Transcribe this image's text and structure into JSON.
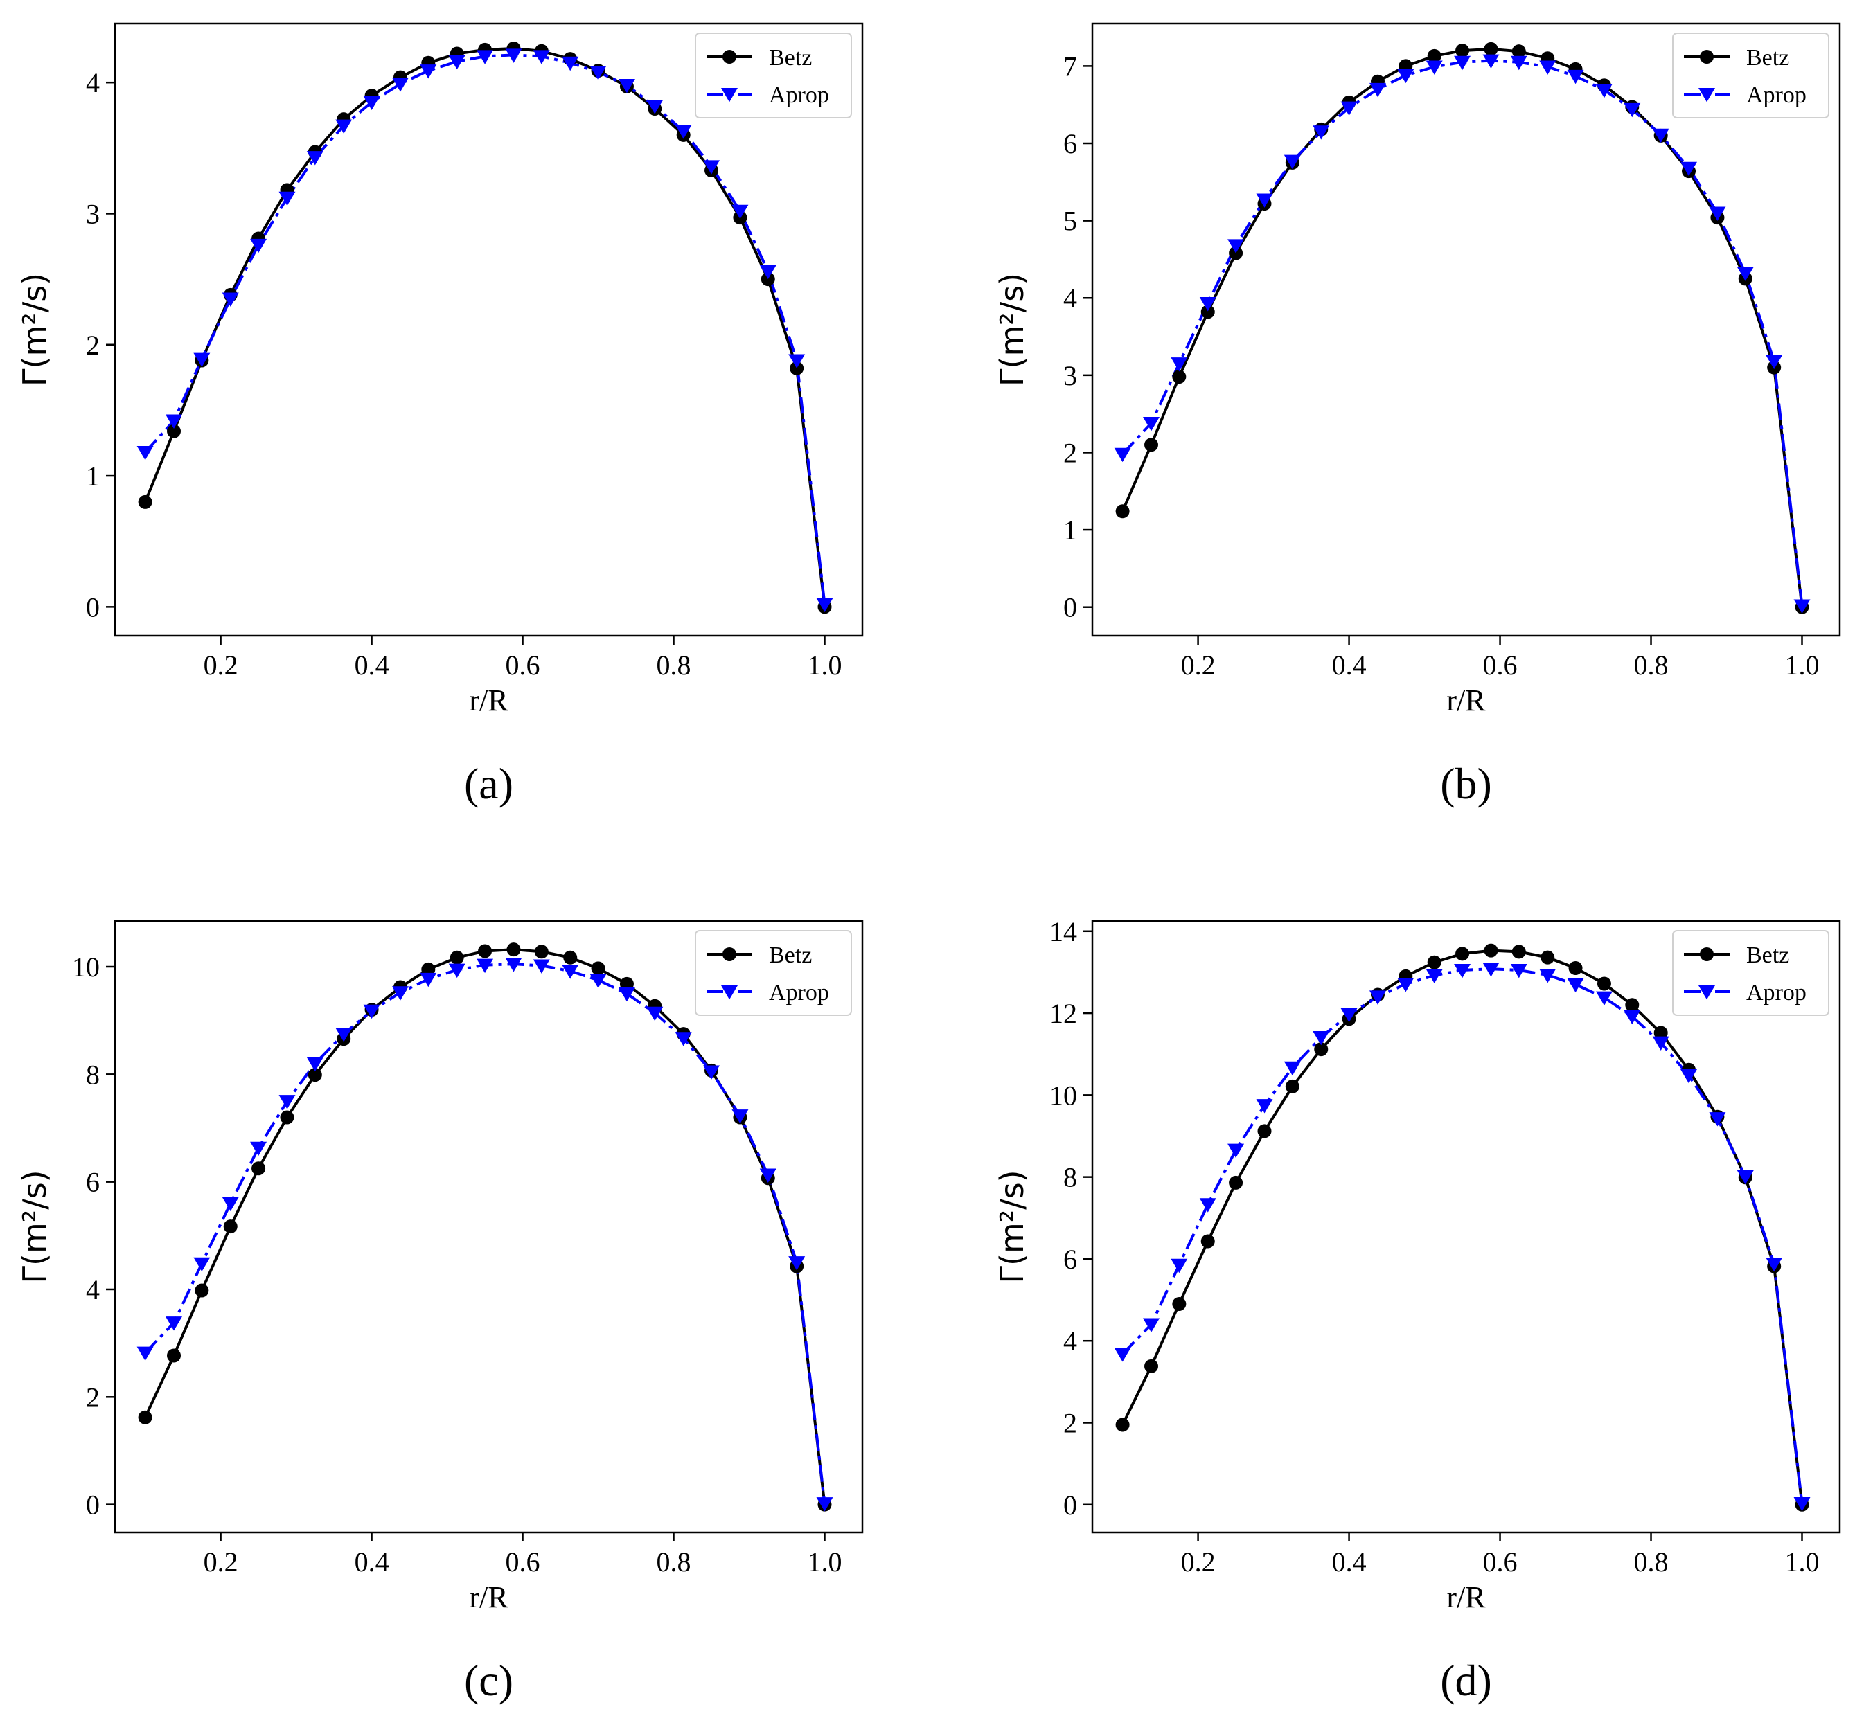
{
  "chart_data": [
    {
      "type": "line",
      "caption": "(a)",
      "xlabel": "r/R",
      "ylabel": "Γ(m²/s)",
      "xlim": [
        0.06,
        1.05
      ],
      "ylim": [
        -0.22,
        4.45
      ],
      "xticks": [
        0.2,
        0.4,
        0.6,
        0.8,
        1.0
      ],
      "xtick_labels": [
        "0.2",
        "0.4",
        "0.6",
        "0.8",
        "1.0"
      ],
      "yticks": [
        0,
        1,
        2,
        3,
        4
      ],
      "ytick_labels": [
        "0",
        "1",
        "2",
        "3",
        "4"
      ],
      "legend_position": "top-right",
      "series": [
        {
          "name": "Betz",
          "color": "#000000",
          "marker": "circle",
          "line_style": "solid",
          "x": [
            0.1,
            0.138,
            0.175,
            0.213,
            0.25,
            0.288,
            0.325,
            0.363,
            0.4,
            0.438,
            0.475,
            0.513,
            0.55,
            0.588,
            0.625,
            0.663,
            0.7,
            0.738,
            0.775,
            0.813,
            0.85,
            0.888,
            0.925,
            0.963,
            1.0
          ],
          "y": [
            0.8,
            1.34,
            1.88,
            2.38,
            2.81,
            3.18,
            3.47,
            3.72,
            3.9,
            4.04,
            4.15,
            4.22,
            4.25,
            4.26,
            4.24,
            4.18,
            4.09,
            3.97,
            3.8,
            3.6,
            3.33,
            2.97,
            2.5,
            1.82,
            0.0
          ]
        },
        {
          "name": "Aprop",
          "color": "#0000ff",
          "marker": "triangle-down",
          "line_style": "dashdot",
          "x": [
            0.1,
            0.138,
            0.175,
            0.213,
            0.25,
            0.288,
            0.325,
            0.363,
            0.4,
            0.438,
            0.475,
            0.513,
            0.55,
            0.588,
            0.625,
            0.663,
            0.7,
            0.738,
            0.775,
            0.813,
            0.85,
            0.888,
            0.925,
            0.963,
            1.0
          ],
          "y": [
            1.18,
            1.42,
            1.89,
            2.35,
            2.76,
            3.12,
            3.43,
            3.67,
            3.85,
            3.99,
            4.09,
            4.16,
            4.2,
            4.21,
            4.2,
            4.15,
            4.08,
            3.98,
            3.82,
            3.63,
            3.36,
            3.02,
            2.56,
            1.88,
            0.02
          ]
        }
      ]
    },
    {
      "type": "line",
      "caption": "(b)",
      "xlabel": "r/R",
      "ylabel": "Γ(m²/s)",
      "xlim": [
        0.06,
        1.05
      ],
      "ylim": [
        -0.37,
        7.55
      ],
      "xticks": [
        0.2,
        0.4,
        0.6,
        0.8,
        1.0
      ],
      "xtick_labels": [
        "0.2",
        "0.4",
        "0.6",
        "0.8",
        "1.0"
      ],
      "yticks": [
        0,
        1,
        2,
        3,
        4,
        5,
        6,
        7
      ],
      "ytick_labels": [
        "0",
        "1",
        "2",
        "3",
        "4",
        "5",
        "6",
        "7"
      ],
      "legend_position": "top-right",
      "series": [
        {
          "name": "Betz",
          "color": "#000000",
          "marker": "circle",
          "line_style": "solid",
          "x": [
            0.1,
            0.138,
            0.175,
            0.213,
            0.25,
            0.288,
            0.325,
            0.363,
            0.4,
            0.438,
            0.475,
            0.513,
            0.55,
            0.588,
            0.625,
            0.663,
            0.7,
            0.738,
            0.775,
            0.813,
            0.85,
            0.888,
            0.925,
            0.963,
            1.0
          ],
          "y": [
            1.24,
            2.1,
            2.98,
            3.82,
            4.58,
            5.22,
            5.75,
            6.18,
            6.53,
            6.8,
            7.0,
            7.13,
            7.2,
            7.22,
            7.19,
            7.1,
            6.96,
            6.75,
            6.47,
            6.1,
            5.64,
            5.04,
            4.25,
            3.1,
            0.0
          ]
        },
        {
          "name": "Aprop",
          "color": "#0000ff",
          "marker": "triangle-down",
          "line_style": "dashdot",
          "x": [
            0.1,
            0.138,
            0.175,
            0.213,
            0.25,
            0.288,
            0.325,
            0.363,
            0.4,
            0.438,
            0.475,
            0.513,
            0.55,
            0.588,
            0.625,
            0.663,
            0.7,
            0.738,
            0.775,
            0.813,
            0.85,
            0.888,
            0.925,
            0.963,
            1.0
          ],
          "y": [
            1.98,
            2.38,
            3.15,
            3.93,
            4.68,
            5.27,
            5.77,
            6.15,
            6.46,
            6.7,
            6.88,
            6.99,
            7.05,
            7.07,
            7.05,
            6.99,
            6.87,
            6.69,
            6.44,
            6.11,
            5.68,
            5.1,
            4.32,
            3.18,
            0.02
          ]
        }
      ]
    },
    {
      "type": "line",
      "caption": "(c)",
      "xlabel": "r/R",
      "ylabel": "Γ(m²/s)",
      "xlim": [
        0.06,
        1.05
      ],
      "ylim": [
        -0.52,
        10.85
      ],
      "xticks": [
        0.2,
        0.4,
        0.6,
        0.8,
        1.0
      ],
      "xtick_labels": [
        "0.2",
        "0.4",
        "0.6",
        "0.8",
        "1.0"
      ],
      "yticks": [
        0,
        2,
        4,
        6,
        8,
        10
      ],
      "ytick_labels": [
        "0",
        "2",
        "4",
        "6",
        "8",
        "10"
      ],
      "legend_position": "top-right",
      "series": [
        {
          "name": "Betz",
          "color": "#000000",
          "marker": "circle",
          "line_style": "solid",
          "x": [
            0.1,
            0.138,
            0.175,
            0.213,
            0.25,
            0.288,
            0.325,
            0.363,
            0.4,
            0.438,
            0.475,
            0.513,
            0.55,
            0.588,
            0.625,
            0.663,
            0.7,
            0.738,
            0.775,
            0.813,
            0.85,
            0.888,
            0.925,
            0.963,
            1.0
          ],
          "y": [
            1.62,
            2.77,
            3.98,
            5.17,
            6.25,
            7.2,
            7.99,
            8.66,
            9.2,
            9.62,
            9.95,
            10.17,
            10.29,
            10.32,
            10.28,
            10.17,
            9.97,
            9.68,
            9.27,
            8.75,
            8.07,
            7.2,
            6.07,
            4.43,
            0.0
          ]
        },
        {
          "name": "Aprop",
          "color": "#0000ff",
          "marker": "triangle-down",
          "line_style": "dashdot",
          "x": [
            0.1,
            0.138,
            0.175,
            0.213,
            0.25,
            0.288,
            0.325,
            0.363,
            0.4,
            0.438,
            0.475,
            0.513,
            0.55,
            0.588,
            0.625,
            0.663,
            0.7,
            0.738,
            0.775,
            0.813,
            0.85,
            0.888,
            0.925,
            0.963,
            1.0
          ],
          "y": [
            2.82,
            3.38,
            4.48,
            5.6,
            6.63,
            7.5,
            8.2,
            8.75,
            9.18,
            9.52,
            9.77,
            9.94,
            10.03,
            10.05,
            10.02,
            9.92,
            9.75,
            9.5,
            9.14,
            8.67,
            8.05,
            7.23,
            6.13,
            4.5,
            0.02
          ]
        }
      ]
    },
    {
      "type": "line",
      "caption": "(d)",
      "xlabel": "r/R",
      "ylabel": "Γ(m²/s)",
      "xlim": [
        0.06,
        1.05
      ],
      "ylim": [
        -0.68,
        14.25
      ],
      "xticks": [
        0.2,
        0.4,
        0.6,
        0.8,
        1.0
      ],
      "xtick_labels": [
        "0.2",
        "0.4",
        "0.6",
        "0.8",
        "1.0"
      ],
      "yticks": [
        0,
        2,
        4,
        6,
        8,
        10,
        12,
        14
      ],
      "ytick_labels": [
        "0",
        "2",
        "4",
        "6",
        "8",
        "10",
        "12",
        "14"
      ],
      "legend_position": "top-right",
      "series": [
        {
          "name": "Betz",
          "color": "#000000",
          "marker": "circle",
          "line_style": "solid",
          "x": [
            0.1,
            0.138,
            0.175,
            0.213,
            0.25,
            0.288,
            0.325,
            0.363,
            0.4,
            0.438,
            0.475,
            0.513,
            0.55,
            0.588,
            0.625,
            0.663,
            0.7,
            0.738,
            0.775,
            0.813,
            0.85,
            0.888,
            0.925,
            0.963,
            1.0
          ],
          "y": [
            1.95,
            3.38,
            4.9,
            6.43,
            7.86,
            9.12,
            10.21,
            11.12,
            11.86,
            12.45,
            12.9,
            13.24,
            13.45,
            13.53,
            13.5,
            13.36,
            13.1,
            12.72,
            12.2,
            11.52,
            10.62,
            9.47,
            7.99,
            5.82,
            0.0
          ]
        },
        {
          "name": "Aprop",
          "color": "#0000ff",
          "marker": "triangle-down",
          "line_style": "dashdot",
          "x": [
            0.1,
            0.138,
            0.175,
            0.213,
            0.25,
            0.288,
            0.325,
            0.363,
            0.4,
            0.438,
            0.475,
            0.513,
            0.55,
            0.588,
            0.625,
            0.663,
            0.7,
            0.738,
            0.775,
            0.813,
            0.85,
            0.888,
            0.925,
            0.963,
            1.0
          ],
          "y": [
            3.68,
            4.4,
            5.85,
            7.33,
            8.66,
            9.75,
            10.67,
            11.41,
            11.97,
            12.4,
            12.71,
            12.92,
            13.05,
            13.08,
            13.05,
            12.93,
            12.7,
            12.38,
            11.92,
            11.28,
            10.48,
            9.43,
            8.01,
            5.88,
            0.03
          ]
        }
      ]
    }
  ]
}
